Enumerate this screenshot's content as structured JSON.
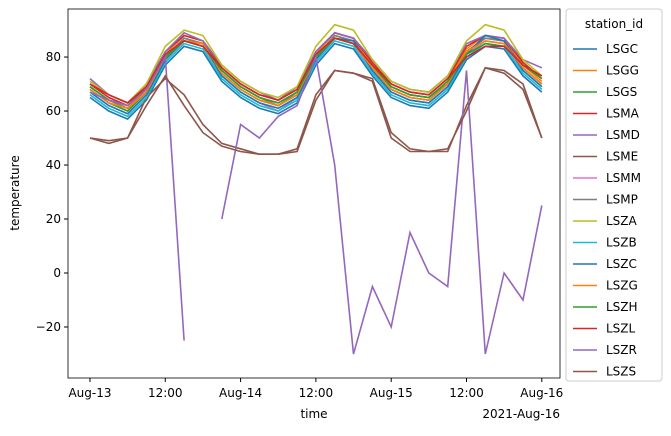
{
  "chart_data": {
    "type": "line",
    "x_label": "time",
    "y_label": "temperature",
    "legend_title": "station_id",
    "x_offset_label": "2021-Aug-16",
    "x": [
      "2021-08-13T00:00",
      "2021-08-13T03:00",
      "2021-08-13T06:00",
      "2021-08-13T09:00",
      "2021-08-13T12:00",
      "2021-08-13T15:00",
      "2021-08-13T18:00",
      "2021-08-13T21:00",
      "2021-08-14T00:00",
      "2021-08-14T03:00",
      "2021-08-14T06:00",
      "2021-08-14T09:00",
      "2021-08-14T12:00",
      "2021-08-14T15:00",
      "2021-08-14T18:00",
      "2021-08-14T21:00",
      "2021-08-15T00:00",
      "2021-08-15T03:00",
      "2021-08-15T06:00",
      "2021-08-15T09:00",
      "2021-08-15T12:00",
      "2021-08-15T15:00",
      "2021-08-15T18:00",
      "2021-08-15T21:00",
      "2021-08-16T00:00"
    ],
    "xlim": [
      "2021-08-12T20:30",
      "2021-08-16T02:54"
    ],
    "xticks": [
      {
        "value": "2021-08-13T00:00",
        "label": "Aug-13"
      },
      {
        "value": "2021-08-13T12:00",
        "label": "12:00"
      },
      {
        "value": "2021-08-14T00:00",
        "label": "Aug-14"
      },
      {
        "value": "2021-08-14T12:00",
        "label": "12:00"
      },
      {
        "value": "2021-08-15T00:00",
        "label": "Aug-15"
      },
      {
        "value": "2021-08-15T12:00",
        "label": "12:00"
      },
      {
        "value": "2021-08-16T00:00",
        "label": "Aug-16"
      }
    ],
    "ylim": [
      -38.9,
      97.8
    ],
    "yticks": [
      {
        "value": -20,
        "label": "−20"
      },
      0,
      20,
      40,
      60,
      80
    ],
    "legend": "outside-right",
    "grid": false,
    "series": [
      {
        "name": "LSGC",
        "color": "#1f77b4",
        "values": [
          65,
          60,
          57,
          64,
          77,
          84,
          82,
          71,
          65,
          61,
          59,
          63,
          77,
          85,
          83,
          73,
          65,
          62,
          61,
          67,
          79,
          84,
          83,
          73,
          67
        ]
      },
      {
        "name": "LSGG",
        "color": "#ff7f0e",
        "values": [
          69,
          64,
          61,
          68,
          81,
          88,
          86,
          75,
          69,
          65,
          63,
          67,
          81,
          89,
          87,
          77,
          69,
          66,
          65,
          71,
          83,
          88,
          87,
          77,
          71
        ]
      },
      {
        "name": "LSGS",
        "color": "#2ca02c",
        "values": [
          68,
          63,
          60,
          67,
          80,
          87,
          85,
          74,
          68,
          64,
          62,
          66,
          80,
          88,
          86,
          76,
          68,
          65,
          64,
          70,
          82,
          87,
          86,
          76,
          70
        ]
      },
      {
        "name": "LSMA",
        "color": "#d62728",
        "values": [
          70,
          65,
          62,
          69,
          82,
          88,
          86,
          76,
          70,
          66,
          64,
          68,
          82,
          89,
          87,
          78,
          70,
          67,
          66,
          72,
          84,
          88,
          87,
          78,
          72
        ]
      },
      {
        "name": "LSMD",
        "color": "#9467bd",
        "values": [
          72,
          66,
          63,
          70,
          82,
          89,
          86,
          77,
          71,
          67,
          64,
          69,
          82,
          89,
          87,
          79,
          71,
          68,
          67,
          73,
          85,
          88,
          87,
          79,
          76
        ]
      },
      {
        "name": "LSME",
        "color": "#8c564b",
        "values": [
          50,
          49,
          50,
          65,
          72,
          66,
          55,
          48,
          46,
          44,
          44,
          45,
          64,
          75,
          74,
          72,
          52,
          46,
          45,
          45,
          62,
          76,
          75,
          70,
          50
        ]
      },
      {
        "name": "LSMM",
        "color": "#e377c2",
        "values": [
          67,
          62,
          59,
          66,
          79,
          86,
          84,
          73,
          67,
          63,
          60,
          65,
          79,
          87,
          85,
          75,
          67,
          64,
          63,
          69,
          81,
          86,
          85,
          75,
          69
        ]
      },
      {
        "name": "LSMP",
        "color": "#7f7f7f",
        "values": [
          69,
          64,
          61,
          67,
          80,
          87,
          85,
          75,
          69,
          65,
          62,
          67,
          80,
          88,
          86,
          76,
          69,
          66,
          65,
          70,
          82,
          87,
          86,
          76,
          70
        ]
      },
      {
        "name": "LSZA",
        "color": "#bcbd22",
        "values": [
          71,
          66,
          63,
          70,
          84,
          90,
          88,
          77,
          71,
          67,
          65,
          69,
          84,
          92,
          90,
          79,
          71,
          68,
          67,
          73,
          86,
          92,
          90,
          79,
          73
        ]
      },
      {
        "name": "LSZB",
        "color": "#17becf",
        "values": [
          66,
          61,
          58,
          65,
          78,
          85,
          83,
          72,
          66,
          62,
          60,
          64,
          78,
          86,
          84,
          74,
          66,
          63,
          62,
          68,
          80,
          85,
          84,
          74,
          68
        ]
      },
      {
        "name": "LSZC",
        "color": "#1f77b4",
        "values": [
          67,
          62,
          59,
          66,
          79,
          86,
          85,
          73,
          67,
          63,
          61,
          65,
          79,
          87,
          86,
          75,
          67,
          64,
          63,
          69,
          81,
          88,
          86,
          75,
          69
        ]
      },
      {
        "name": "LSZG",
        "color": "#ff7f0e",
        "values": [
          68,
          63,
          61,
          67,
          80,
          86,
          85,
          74,
          68,
          64,
          62,
          66,
          80,
          87,
          85,
          76,
          68,
          65,
          64,
          70,
          82,
          86,
          85,
          76,
          70
        ]
      },
      {
        "name": "LSZH",
        "color": "#2ca02c",
        "values": [
          69,
          64,
          62,
          68,
          80,
          86,
          84,
          75,
          69,
          65,
          63,
          67,
          80,
          87,
          85,
          77,
          69,
          66,
          65,
          71,
          81,
          85,
          84,
          77,
          72
        ]
      },
      {
        "name": "LSZL",
        "color": "#d62728",
        "values": [
          70,
          66,
          63,
          69,
          81,
          86,
          84,
          76,
          70,
          66,
          64,
          68,
          81,
          87,
          85,
          77,
          70,
          67,
          66,
          72,
          80,
          84,
          84,
          77,
          73
        ]
      },
      {
        "name": "LSZR",
        "color": "#9467bd",
        "values": [
          67,
          64,
          62,
          68,
          80,
          -25,
          null,
          20,
          55,
          50,
          58,
          62,
          80,
          40,
          -30,
          -5,
          -20,
          15,
          0,
          -5,
          75,
          -30,
          0,
          -10,
          25
        ]
      },
      {
        "name": "LSZS",
        "color": "#8c564b",
        "values": [
          50,
          48,
          50,
          62,
          73,
          62,
          52,
          47,
          45,
          44,
          44,
          46,
          66,
          75,
          74,
          71,
          50,
          45,
          45,
          46,
          60,
          76,
          74,
          68,
          50
        ]
      }
    ]
  }
}
